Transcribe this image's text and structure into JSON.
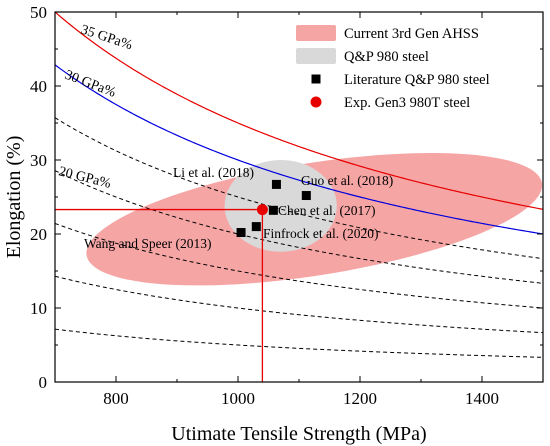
{
  "chart_data": {
    "type": "scatter",
    "xlabel": "Utimate Tensile Strength (MPa)",
    "ylabel": "Elongation (%)",
    "xlim": [
      700,
      1500
    ],
    "ylim": [
      0,
      50
    ],
    "x_ticks": [
      800,
      1000,
      1200,
      1400
    ],
    "y_ticks": [
      0,
      10,
      20,
      30,
      40,
      50
    ],
    "grid": false,
    "legend_position": "top-right",
    "legend": [
      {
        "label": "Current 3rd Gen AHSS",
        "marker": "filled-ellipse",
        "color": "#f6a5a5"
      },
      {
        "label": "Q&P 980 steel",
        "marker": "filled-ellipse",
        "color": "#d9d9d9"
      },
      {
        "label": "Literature Q&P 980 steel",
        "marker": "square",
        "color": "#000000"
      },
      {
        "label": "Exp. Gen3 980T steel",
        "marker": "circle",
        "color": "#e60000"
      }
    ],
    "regions": [
      {
        "name": "Current 3rd Gen AHSS",
        "shape": "ellipse",
        "color": "#f6a5a5",
        "center": [
          1125,
          22
        ],
        "radii": [
          378,
          7.6
        ],
        "rotation_deg": 9
      },
      {
        "name": "Q&P 980 steel",
        "shape": "ellipse",
        "color": "#d9d9d9",
        "center": [
          1070,
          23.8
        ],
        "radii": [
          92,
          6.2
        ],
        "rotation_deg": 0
      }
    ],
    "iso_product_curves": [
      {
        "label": "35 GPa%",
        "k": 35000,
        "color": "#e60000",
        "style": "solid"
      },
      {
        "label": "30 GPa%",
        "k": 30000,
        "color": "#0000dd",
        "style": "solid"
      },
      {
        "label": "20 GPa%",
        "k": 20000,
        "color": "#000000",
        "style": "dashed"
      },
      {
        "k": 25000,
        "color": "#000000",
        "style": "dashed"
      },
      {
        "k": 15000,
        "color": "#000000",
        "style": "dashed"
      },
      {
        "k": 10000,
        "color": "#000000",
        "style": "dashed"
      },
      {
        "k": 5000,
        "color": "#000000",
        "style": "dashed"
      }
    ],
    "series": [
      {
        "name": "Literature Q&P 980 steel",
        "marker": "square",
        "color": "#000000",
        "points": [
          {
            "x": 1063,
            "y": 26.7,
            "label": "Li et al. (2018)"
          },
          {
            "x": 1112,
            "y": 25.2,
            "label": "Guo et al. (2018)"
          },
          {
            "x": 1058,
            "y": 23.2,
            "label": "Chen et al. (2017)"
          },
          {
            "x": 1030,
            "y": 21.0,
            "label": "Finfrock et al. (2020)"
          },
          {
            "x": 1005,
            "y": 20.2,
            "label": "Wang and Speer (2013)"
          }
        ]
      },
      {
        "name": "Exp. Gen3 980T steel",
        "marker": "circle",
        "color": "#e60000",
        "points": [
          {
            "x": 1040,
            "y": 23.3
          }
        ]
      }
    ],
    "reference_lines": [
      {
        "type": "horizontal",
        "y": 23.3,
        "x_range": [
          700,
          1040
        ],
        "color": "#e60000"
      },
      {
        "type": "vertical",
        "x": 1040,
        "y_range": [
          0,
          23.3
        ],
        "color": "#e60000"
      }
    ]
  }
}
